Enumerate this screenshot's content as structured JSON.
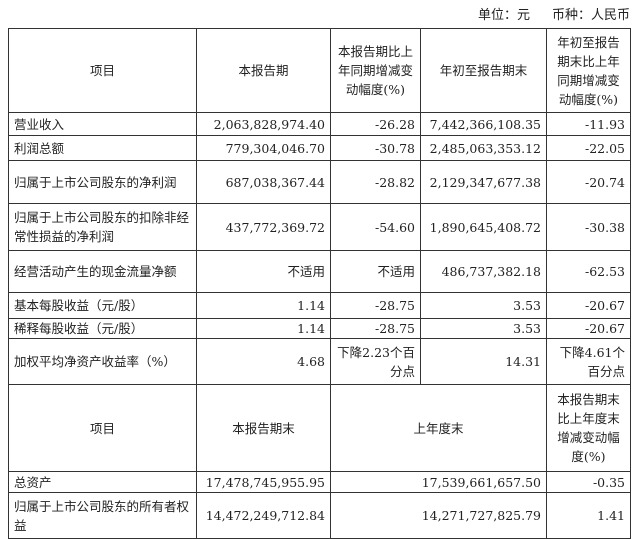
{
  "unit_label": "单位：元",
  "currency_label": "币种：人民币",
  "table1": {
    "headers": [
      "项目",
      "本报告期",
      "本报告期比上年同期增减变动幅度(%)",
      "年初至报告期末",
      "年初至报告期末比上年同期增减变动幅度(%)"
    ],
    "rows": [
      [
        "营业收入",
        "2,063,828,974.40",
        "-26.28",
        "7,442,366,108.35",
        "-11.93"
      ],
      [
        "利润总额",
        "779,304,046.70",
        "-30.78",
        "2,485,063,353.12",
        "-22.05"
      ],
      [
        "归属于上市公司股东的净利润",
        "687,038,367.44",
        "-28.82",
        "2,129,347,677.38",
        "-20.74"
      ],
      [
        "归属于上市公司股东的扣除非经常性损益的净利润",
        "437,772,369.72",
        "-54.60",
        "1,890,645,408.72",
        "-30.38"
      ],
      [
        "经营活动产生的现金流量净额",
        "不适用",
        "不适用",
        "486,737,382.18",
        "-62.53"
      ],
      [
        "基本每股收益（元/股）",
        "1.14",
        "-28.75",
        "3.53",
        "-20.67"
      ],
      [
        "稀释每股收益（元/股）",
        "1.14",
        "-28.75",
        "3.53",
        "-20.67"
      ],
      [
        "加权平均净资产收益率（%）",
        "4.68",
        "下降2.23个百分点",
        "14.31",
        "下降4.61个百分点"
      ]
    ]
  },
  "table2": {
    "headers": [
      "项目",
      "本报告期末",
      "上年度末",
      "本报告期末比上年度末增减变动幅度(%)"
    ],
    "rows": [
      [
        "总资产",
        "17,478,745,955.95",
        "17,539,661,657.50",
        "-0.35"
      ],
      [
        "归属于上市公司股东的所有者权益",
        "14,472,249,712.84",
        "14,271,727,825.79",
        "1.41"
      ]
    ]
  }
}
